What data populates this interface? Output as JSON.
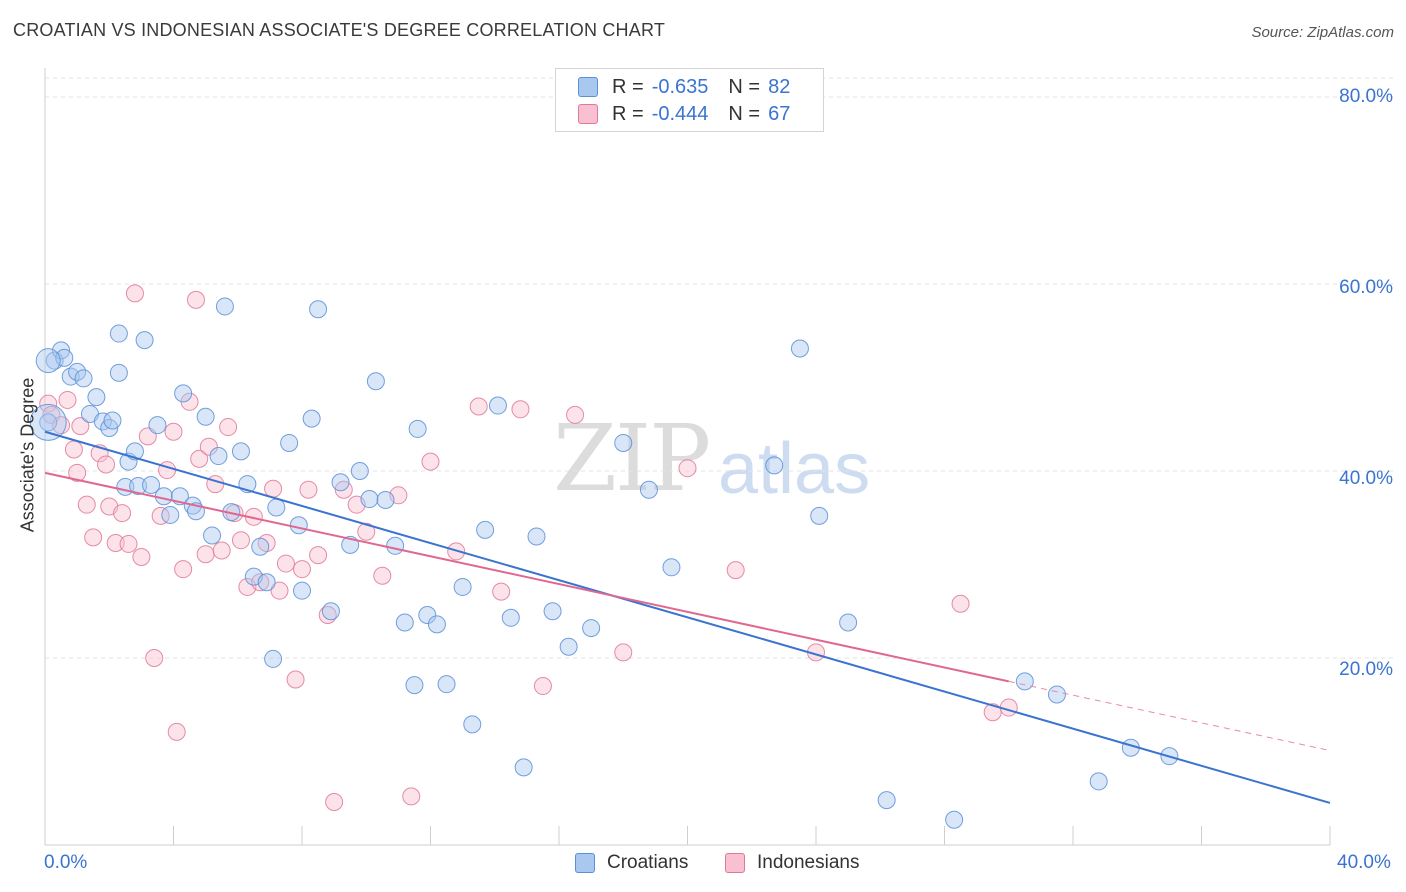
{
  "header": {
    "title": "CROATIAN VS INDONESIAN ASSOCIATE'S DEGREE CORRELATION CHART",
    "source": "Source: ZipAtlas.com"
  },
  "watermark": {
    "zip": "ZIP",
    "atlas": "atlas"
  },
  "legend": {
    "rows": [
      {
        "r_label": "R =",
        "r_value": "-0.635",
        "n_label": "N =",
        "n_value": "82",
        "color": "#a8c8f0",
        "border": "#5b8fd8"
      },
      {
        "r_label": "R =",
        "r_value": "-0.444",
        "n_label": "N =",
        "n_value": "67",
        "color": "#f8c0d0",
        "border": "#e07898"
      }
    ]
  },
  "bottom_legend": {
    "items": [
      {
        "label": "Croatians",
        "color": "#a8c8f0",
        "border": "#5b8fd8"
      },
      {
        "label": "Indonesians",
        "color": "#f8c0d0",
        "border": "#e07898"
      }
    ]
  },
  "axes": {
    "ylabel": "Associate's Degree",
    "y_ticks": [
      "80.0%",
      "60.0%",
      "40.0%",
      "20.0%"
    ],
    "x_ticks": [
      "0.0%",
      "40.0%"
    ]
  },
  "chart_data": {
    "type": "scatter",
    "title": "CROATIAN VS INDONESIAN ASSOCIATE'S DEGREE CORRELATION CHART",
    "xlabel": "",
    "ylabel": "Associate's Degree",
    "xlim": [
      0,
      40
    ],
    "ylim": [
      0,
      82
    ],
    "grid": true,
    "legend_position": "top-center",
    "series": [
      {
        "name": "Croatians",
        "color": "#5b8fd8",
        "fill": "#a8c8f0",
        "trend": {
          "x": [
            0,
            40
          ],
          "y": [
            44.2,
            4.5
          ]
        },
        "points": [
          [
            0.1,
            45.2
          ],
          [
            0.3,
            51.8
          ],
          [
            0.5,
            52.9
          ],
          [
            0.6,
            52.1
          ],
          [
            0.8,
            50.1
          ],
          [
            1.0,
            50.6
          ],
          [
            1.2,
            49.9
          ],
          [
            1.4,
            46.1
          ],
          [
            1.6,
            47.9
          ],
          [
            1.8,
            45.3
          ],
          [
            2.0,
            44.6
          ],
          [
            2.1,
            45.4
          ],
          [
            2.3,
            54.7
          ],
          [
            2.3,
            50.5
          ],
          [
            2.5,
            38.3
          ],
          [
            2.6,
            41.0
          ],
          [
            2.8,
            42.1
          ],
          [
            2.9,
            38.4
          ],
          [
            3.1,
            54.0
          ],
          [
            3.3,
            38.5
          ],
          [
            3.5,
            44.9
          ],
          [
            3.7,
            37.3
          ],
          [
            3.9,
            35.3
          ],
          [
            4.2,
            37.3
          ],
          [
            4.3,
            48.3
          ],
          [
            4.6,
            36.3
          ],
          [
            4.7,
            35.7
          ],
          [
            5.0,
            45.8
          ],
          [
            5.2,
            33.1
          ],
          [
            5.4,
            41.6
          ],
          [
            5.6,
            57.6
          ],
          [
            5.8,
            35.6
          ],
          [
            6.1,
            42.1
          ],
          [
            6.3,
            38.6
          ],
          [
            6.5,
            28.7
          ],
          [
            6.7,
            31.9
          ],
          [
            6.9,
            28.1
          ],
          [
            7.1,
            19.9
          ],
          [
            7.2,
            36.1
          ],
          [
            7.6,
            43.0
          ],
          [
            7.9,
            34.2
          ],
          [
            8.0,
            27.2
          ],
          [
            8.3,
            45.6
          ],
          [
            8.5,
            57.3
          ],
          [
            8.9,
            25.0
          ],
          [
            9.2,
            38.8
          ],
          [
            9.5,
            32.1
          ],
          [
            9.8,
            40.0
          ],
          [
            10.1,
            37.0
          ],
          [
            10.3,
            49.6
          ],
          [
            10.6,
            36.9
          ],
          [
            10.9,
            32.0
          ],
          [
            11.2,
            23.8
          ],
          [
            11.5,
            17.1
          ],
          [
            11.6,
            44.5
          ],
          [
            11.9,
            24.6
          ],
          [
            12.2,
            23.6
          ],
          [
            12.5,
            17.2
          ],
          [
            13.0,
            27.6
          ],
          [
            13.3,
            12.9
          ],
          [
            13.7,
            33.7
          ],
          [
            14.1,
            47.0
          ],
          [
            14.5,
            24.3
          ],
          [
            14.9,
            8.3
          ],
          [
            15.3,
            33.0
          ],
          [
            15.8,
            25.0
          ],
          [
            16.3,
            21.2
          ],
          [
            17.0,
            23.2
          ],
          [
            18.0,
            43.0
          ],
          [
            18.8,
            38.0
          ],
          [
            19.5,
            29.7
          ],
          [
            22.7,
            40.6
          ],
          [
            23.5,
            53.1
          ],
          [
            24.1,
            35.2
          ],
          [
            25.0,
            23.8
          ],
          [
            26.2,
            4.8
          ],
          [
            28.3,
            2.7
          ],
          [
            30.5,
            17.5
          ],
          [
            31.5,
            16.1
          ],
          [
            32.8,
            6.8
          ],
          [
            33.8,
            10.4
          ],
          [
            35.0,
            9.5
          ]
        ]
      },
      {
        "name": "Indonesians",
        "color": "#e07898",
        "fill": "#f8c0d0",
        "trend": {
          "x": [
            0,
            30
          ],
          "y": [
            39.8,
            17.5
          ]
        },
        "trend_dashed": {
          "x": [
            30,
            40
          ],
          "y": [
            17.5,
            10.1
          ]
        },
        "points": [
          [
            0.1,
            47.2
          ],
          [
            0.2,
            46.0
          ],
          [
            0.5,
            44.9
          ],
          [
            0.7,
            47.6
          ],
          [
            0.9,
            42.3
          ],
          [
            1.0,
            39.8
          ],
          [
            1.1,
            44.8
          ],
          [
            1.3,
            36.4
          ],
          [
            1.5,
            32.9
          ],
          [
            1.7,
            41.9
          ],
          [
            1.9,
            40.7
          ],
          [
            2.0,
            36.2
          ],
          [
            2.2,
            32.3
          ],
          [
            2.4,
            35.5
          ],
          [
            2.6,
            32.2
          ],
          [
            2.8,
            59.0
          ],
          [
            3.0,
            30.8
          ],
          [
            3.2,
            43.7
          ],
          [
            3.4,
            20.0
          ],
          [
            3.6,
            35.2
          ],
          [
            3.8,
            40.1
          ],
          [
            4.0,
            44.2
          ],
          [
            4.1,
            12.1
          ],
          [
            4.3,
            29.5
          ],
          [
            4.5,
            47.4
          ],
          [
            4.7,
            58.3
          ],
          [
            4.8,
            41.3
          ],
          [
            5.0,
            31.1
          ],
          [
            5.1,
            42.6
          ],
          [
            5.3,
            38.6
          ],
          [
            5.5,
            31.5
          ],
          [
            5.7,
            44.7
          ],
          [
            5.9,
            35.5
          ],
          [
            6.1,
            32.6
          ],
          [
            6.3,
            27.6
          ],
          [
            6.5,
            35.1
          ],
          [
            6.7,
            28.1
          ],
          [
            6.9,
            32.3
          ],
          [
            7.1,
            38.1
          ],
          [
            7.3,
            27.2
          ],
          [
            7.5,
            30.1
          ],
          [
            7.8,
            17.7
          ],
          [
            8.0,
            29.5
          ],
          [
            8.2,
            38.0
          ],
          [
            8.5,
            31.0
          ],
          [
            8.8,
            24.6
          ],
          [
            9.0,
            4.6
          ],
          [
            9.3,
            38.0
          ],
          [
            9.7,
            36.4
          ],
          [
            10.0,
            33.5
          ],
          [
            10.5,
            28.8
          ],
          [
            11.0,
            37.4
          ],
          [
            11.4,
            5.2
          ],
          [
            12.0,
            41.0
          ],
          [
            12.8,
            31.4
          ],
          [
            13.5,
            46.9
          ],
          [
            14.2,
            27.1
          ],
          [
            14.8,
            46.6
          ],
          [
            15.5,
            17.0
          ],
          [
            16.5,
            46.0
          ],
          [
            18.0,
            20.6
          ],
          [
            20.0,
            40.3
          ],
          [
            21.5,
            29.4
          ],
          [
            24.0,
            20.6
          ],
          [
            28.5,
            25.8
          ],
          [
            29.5,
            14.2
          ],
          [
            30.0,
            14.7
          ]
        ]
      }
    ]
  }
}
